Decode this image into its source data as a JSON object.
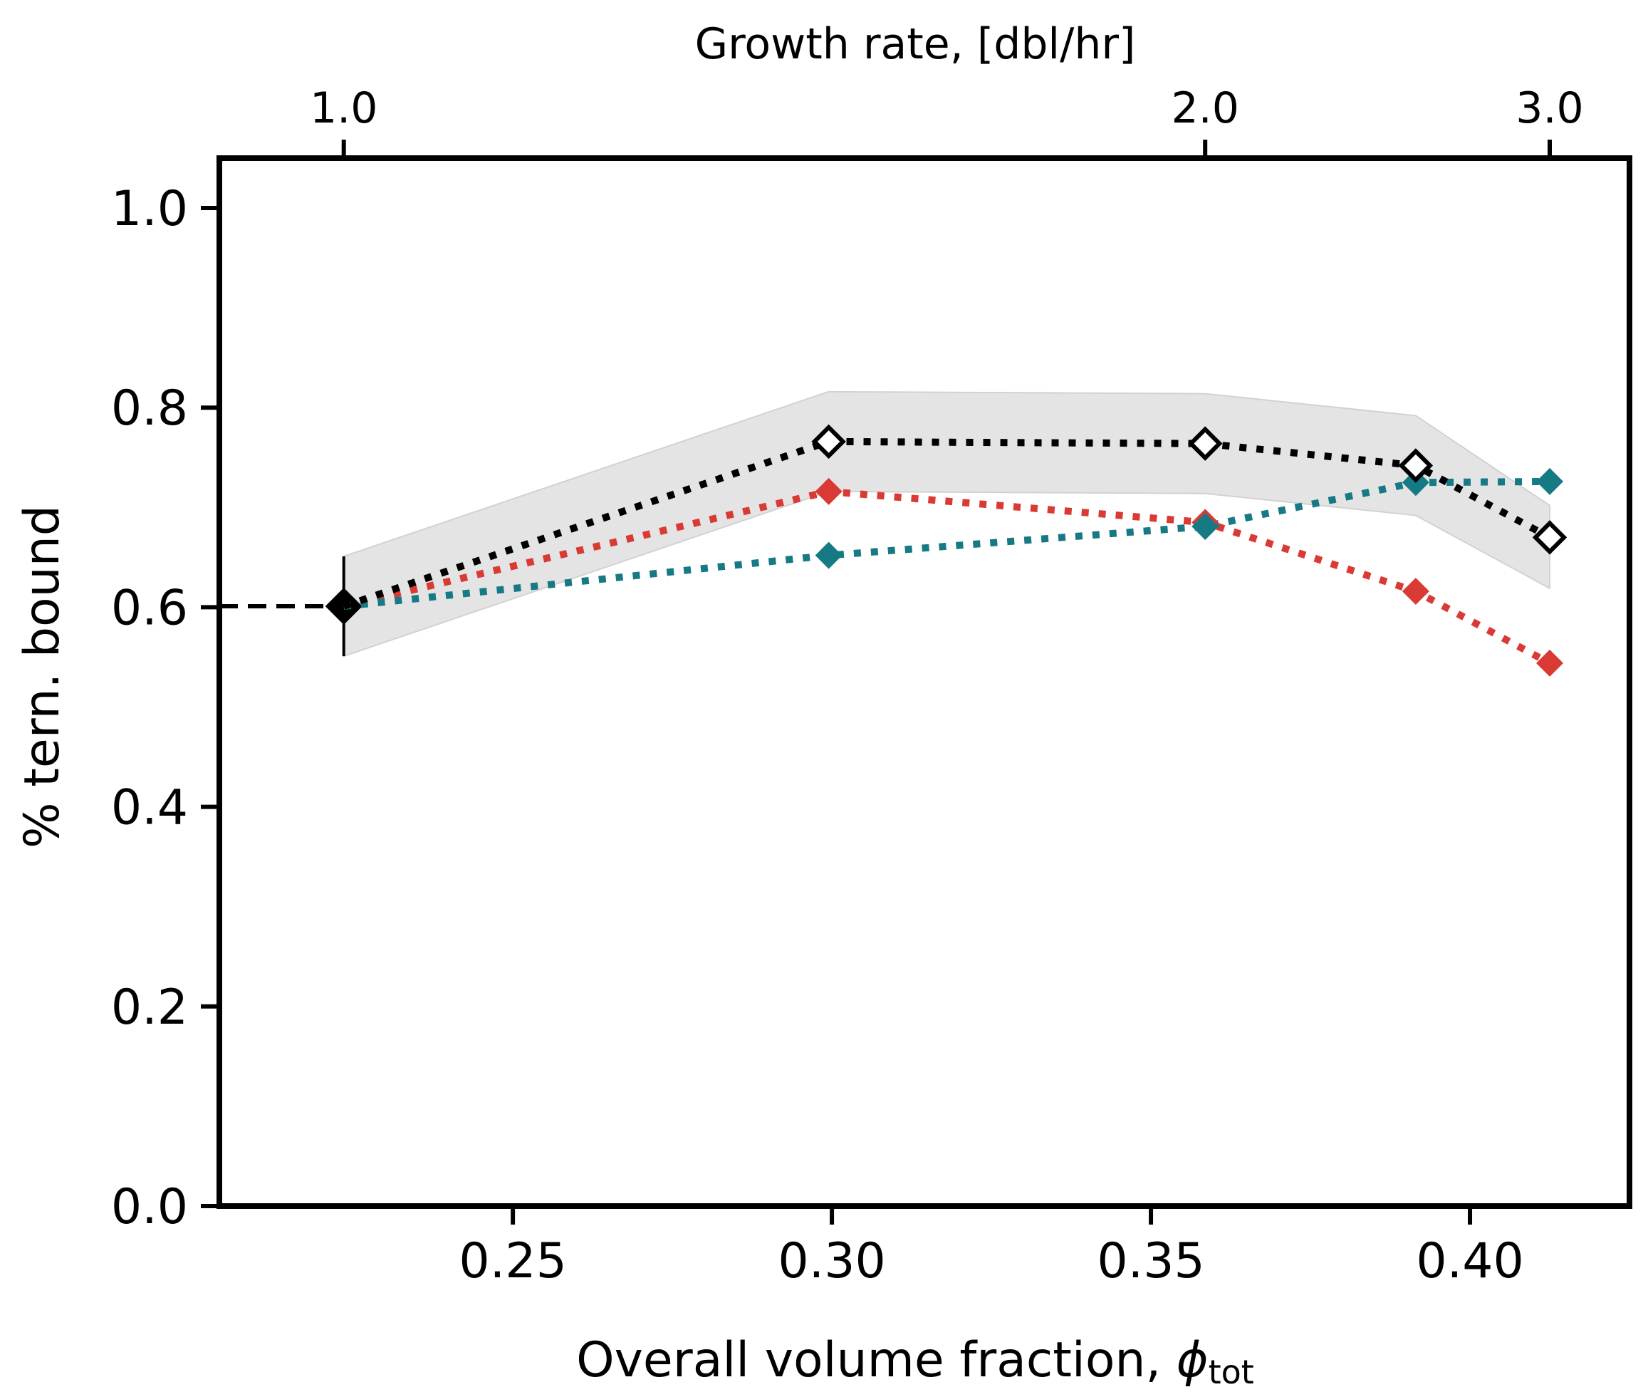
{
  "chart_data": {
    "type": "line",
    "xlabel": "Overall volume fraction, ",
    "xlabel_symbol": "ϕ",
    "xlabel_subscript": "tot",
    "ylabel": "% tern. bound",
    "top_xlabel": "Growth rate, [dbl/hr]",
    "xlim": [
      0.204,
      0.425
    ],
    "ylim": [
      0.0,
      1.05
    ],
    "xticks": [
      0.25,
      0.3,
      0.35,
      0.4
    ],
    "xtick_labels": [
      "0.25",
      "0.30",
      "0.35",
      "0.40"
    ],
    "yticks": [
      0.0,
      0.2,
      0.4,
      0.6,
      0.8,
      1.0
    ],
    "ytick_labels": [
      "0.0",
      "0.2",
      "0.4",
      "0.6",
      "0.8",
      "1.0"
    ],
    "top_ticks": [
      {
        "at_x": 0.2235,
        "label": "1.0"
      },
      {
        "at_x": 0.3585,
        "label": "2.0"
      },
      {
        "at_x": 0.4125,
        "label": "3.0"
      }
    ],
    "grid": false,
    "reference": {
      "x": 0.2235,
      "y": 0.601,
      "err": 0.05,
      "dashed_to_x": 0.204,
      "color": "#000000"
    },
    "band": {
      "color": "#e4e4e4",
      "x": [
        0.2235,
        0.2995,
        0.3585,
        0.3915,
        0.4125
      ],
      "upper": [
        0.651,
        0.816,
        0.814,
        0.792,
        0.702
      ],
      "lower": [
        0.551,
        0.716,
        0.714,
        0.692,
        0.619
      ]
    },
    "series": [
      {
        "color": "#d93a34",
        "marker": "filled-diamond",
        "x": [
          0.2235,
          0.2995,
          0.3585,
          0.3915,
          0.4125
        ],
        "y": [
          0.601,
          0.716,
          0.685,
          0.616,
          0.544
        ]
      },
      {
        "color": "#167a85",
        "marker": "filled-diamond",
        "x": [
          0.2235,
          0.2995,
          0.3585,
          0.3915,
          0.4125
        ],
        "y": [
          0.601,
          0.652,
          0.681,
          0.725,
          0.726
        ]
      },
      {
        "color": "#000000",
        "marker": "open-diamond",
        "x": [
          0.2235,
          0.2995,
          0.3585,
          0.3915,
          0.4125
        ],
        "y": [
          0.601,
          0.766,
          0.764,
          0.742,
          0.67
        ]
      }
    ]
  }
}
